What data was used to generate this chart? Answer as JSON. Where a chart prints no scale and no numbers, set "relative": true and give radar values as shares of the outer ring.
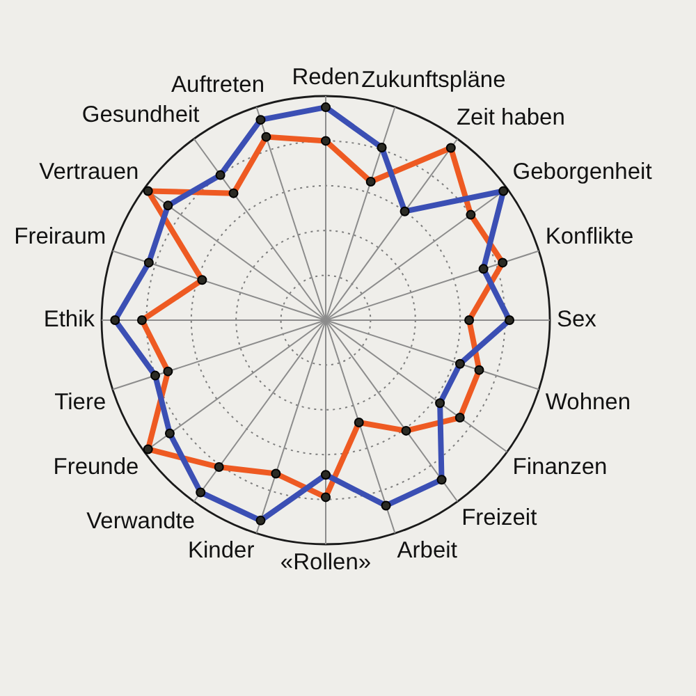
{
  "chart_data": {
    "type": "radar",
    "relative": true,
    "grid": true,
    "marker": "circle",
    "categories": [
      "Reden",
      "Zukunftspläne",
      "Zeit haben",
      "Geborgenheit",
      "Konflikte",
      "Sex",
      "Wohnen",
      "Finanzen",
      "Freizeit",
      "Arbeit",
      "«Rollen»",
      "Kinder",
      "Verwandte",
      "Freunde",
      "Tiere",
      "Ethik",
      "Freiraum",
      "Vertrauen",
      "Gesundheit",
      "Auftreten"
    ],
    "series": [
      {
        "color": "#3b4fb4",
        "values": [
          0.95,
          0.81,
          0.6,
          0.98,
          0.74,
          0.82,
          0.63,
          0.63,
          0.88,
          0.87,
          0.69,
          0.94,
          0.95,
          0.86,
          0.8,
          0.94,
          0.83,
          0.87,
          0.8,
          0.94
        ]
      },
      {
        "color": "#ee5a22",
        "values": [
          0.8,
          0.65,
          0.95,
          0.8,
          0.83,
          0.64,
          0.72,
          0.74,
          0.61,
          0.48,
          0.79,
          0.72,
          0.81,
          0.98,
          0.74,
          0.82,
          0.58,
          0.98,
          0.7,
          0.86
        ]
      }
    ]
  }
}
